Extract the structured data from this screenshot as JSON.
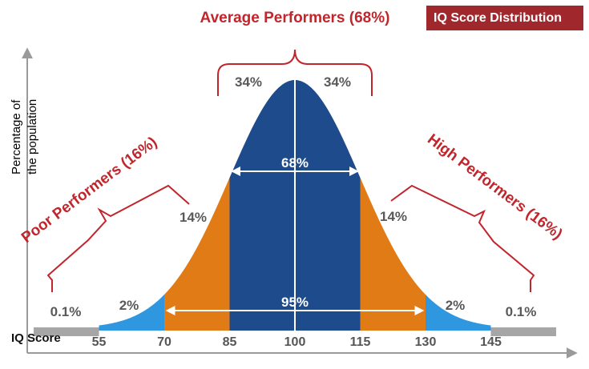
{
  "chart_data": {
    "type": "area",
    "title": "IQ Score Distribution",
    "ylabel": [
      "Percentage of",
      "the population"
    ],
    "xlabel": "IQ Score",
    "xticks": [
      55,
      70,
      85,
      100,
      115,
      130,
      145
    ],
    "distribution": {
      "mean": 100,
      "sd": 15
    },
    "segments": [
      {
        "from": 40,
        "to": 55,
        "percent": "0.1%",
        "color": "#a6a6a6"
      },
      {
        "from": 55,
        "to": 70,
        "percent": "2%",
        "color": "#2f97df"
      },
      {
        "from": 70,
        "to": 85,
        "percent": "14%",
        "color": "#e07b16"
      },
      {
        "from": 85,
        "to": 100,
        "percent": "34%",
        "color": "#1e4b8b"
      },
      {
        "from": 100,
        "to": 115,
        "percent": "34%",
        "color": "#1e4b8b"
      },
      {
        "from": 115,
        "to": 130,
        "percent": "14%",
        "color": "#e07b16"
      },
      {
        "from": 130,
        "to": 145,
        "percent": "2%",
        "color": "#2f97df"
      },
      {
        "from": 145,
        "to": 160,
        "percent": "0.1%",
        "color": "#a6a6a6"
      }
    ],
    "spans": [
      {
        "label": "68%",
        "from": 85,
        "to": 115
      },
      {
        "label": "95%",
        "from": 70,
        "to": 130
      }
    ],
    "groups": [
      {
        "label": "Poor Performers (16%)"
      },
      {
        "label": "Average Performers (68%)"
      },
      {
        "label": "High Performers (16%)"
      }
    ]
  },
  "colors": {
    "title_bg": "#a0282c",
    "annotation_red": "#c0262c",
    "label_gray": "#595959"
  }
}
